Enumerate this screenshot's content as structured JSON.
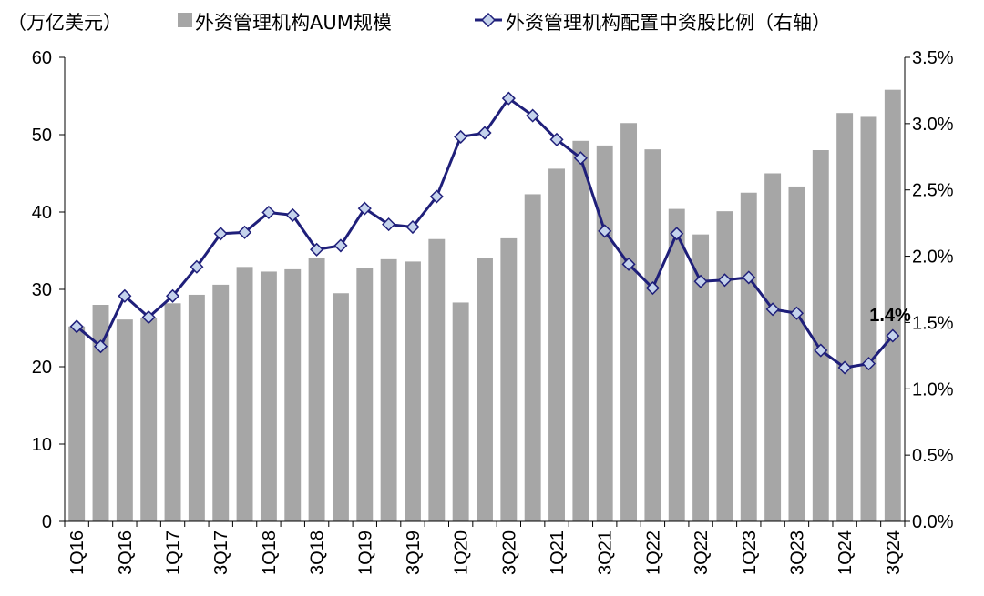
{
  "chart_data": {
    "type": "bar+line",
    "y_left_unit_label": "（万亿美元）",
    "categories": [
      "1Q16",
      "2Q16",
      "3Q16",
      "4Q16",
      "1Q17",
      "2Q17",
      "3Q17",
      "4Q17",
      "1Q18",
      "2Q18",
      "3Q18",
      "4Q18",
      "1Q19",
      "2Q19",
      "3Q19",
      "4Q19",
      "1Q20",
      "2Q20",
      "3Q20",
      "4Q20",
      "1Q21",
      "2Q21",
      "3Q21",
      "4Q21",
      "1Q22",
      "2Q22",
      "3Q22",
      "4Q22",
      "1Q23",
      "2Q23",
      "3Q23",
      "4Q23",
      "1Q24",
      "2Q24",
      "3Q24"
    ],
    "x_tick_labels_shown": [
      "1Q16",
      "3Q16",
      "1Q17",
      "3Q17",
      "1Q18",
      "3Q18",
      "1Q19",
      "3Q19",
      "1Q20",
      "3Q20",
      "1Q21",
      "3Q21",
      "1Q22",
      "3Q22",
      "1Q23",
      "3Q23",
      "1Q24",
      "3Q24"
    ],
    "series": [
      {
        "name": "外资管理机构AUM规模",
        "type": "bar",
        "axis": "left",
        "color": "#a6a6a6",
        "values": [
          25.2,
          28.0,
          26.1,
          26.3,
          28.2,
          29.3,
          30.6,
          32.9,
          32.3,
          32.6,
          34.0,
          29.5,
          32.8,
          33.9,
          33.6,
          36.5,
          28.3,
          34.0,
          36.6,
          42.3,
          45.6,
          49.2,
          48.6,
          51.5,
          48.1,
          40.4,
          37.1,
          40.1,
          42.5,
          45.0,
          43.3,
          48.0,
          52.8,
          52.3,
          55.8
        ]
      },
      {
        "name": "外资管理机构配置中资股比例（右轴）",
        "type": "line",
        "axis": "right",
        "color": "#1f1f7a",
        "marker_fill": "#c5d3ec",
        "values": [
          1.47,
          1.32,
          1.7,
          1.54,
          1.7,
          1.92,
          2.17,
          2.18,
          2.33,
          2.31,
          2.05,
          2.08,
          2.36,
          2.24,
          2.22,
          2.45,
          2.9,
          2.93,
          3.19,
          3.06,
          2.88,
          2.74,
          2.19,
          1.94,
          1.76,
          2.17,
          1.81,
          1.82,
          1.84,
          1.6,
          1.57,
          1.29,
          1.16,
          1.19,
          1.4
        ]
      }
    ],
    "y_left": {
      "min": 0,
      "max": 60,
      "ticks": [
        0,
        10,
        20,
        30,
        40,
        50,
        60
      ]
    },
    "y_right": {
      "min": 0,
      "max": 3.5,
      "ticks": [
        "0.0%",
        "0.5%",
        "1.0%",
        "1.5%",
        "2.0%",
        "2.5%",
        "3.0%",
        "3.5%"
      ]
    },
    "annotation": {
      "text": "1.4%",
      "category": "3Q24"
    },
    "legend_position": "top",
    "grid": false
  }
}
